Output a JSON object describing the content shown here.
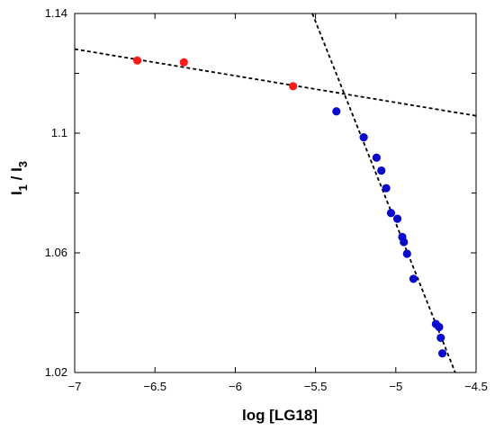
{
  "chart_data": {
    "type": "scatter",
    "xlabel": "log [LG18]",
    "ylabel": {
      "main": "I",
      "sub1": "1",
      "slash": " / I",
      "sub2": "3"
    },
    "xlim": [
      -7,
      -4.5
    ],
    "ylim": [
      1.02,
      1.14
    ],
    "x_ticks": [
      -7,
      -6.5,
      -6,
      -5.5,
      -5,
      -4.5
    ],
    "x_tick_labels": [
      "−7",
      "−6.5",
      "−6",
      "−5.5",
      "−5",
      "−4.5"
    ],
    "y_ticks": [
      1.02,
      1.06,
      1.1,
      1.14
    ],
    "y_tick_labels": [
      "1.02",
      "1.06",
      "1.1",
      "1.14"
    ],
    "y_minor_ticks": [
      1.04,
      1.08,
      1.12
    ],
    "grid": false,
    "series": [
      {
        "color": "#ff1a1a",
        "points": [
          {
            "x": -6.61,
            "y": 1.1243
          },
          {
            "x": -6.32,
            "y": 1.1237
          },
          {
            "x": -5.64,
            "y": 1.1157
          }
        ]
      },
      {
        "color": "#0a0acc",
        "points": [
          {
            "x": -5.37,
            "y": 1.1073
          },
          {
            "x": -5.2,
            "y": 1.0986
          },
          {
            "x": -5.12,
            "y": 1.0918
          },
          {
            "x": -5.09,
            "y": 1.0875
          },
          {
            "x": -5.06,
            "y": 1.0816
          },
          {
            "x": -5.03,
            "y": 1.0733
          },
          {
            "x": -4.99,
            "y": 1.0714
          },
          {
            "x": -4.96,
            "y": 1.0653
          },
          {
            "x": -4.95,
            "y": 1.0636
          },
          {
            "x": -4.93,
            "y": 1.0597
          },
          {
            "x": -4.89,
            "y": 1.0513
          },
          {
            "x": -4.75,
            "y": 1.0362
          },
          {
            "x": -4.73,
            "y": 1.0352
          },
          {
            "x": -4.72,
            "y": 1.0316
          },
          {
            "x": -4.71,
            "y": 1.0264
          }
        ]
      }
    ],
    "fit_lines": [
      {
        "from": {
          "x": -7.0,
          "y": 1.1281
        },
        "to": {
          "x": -4.5,
          "y": 1.1058
        }
      },
      {
        "from": {
          "x": -5.52,
          "y": 1.14
        },
        "to": {
          "x": -4.63,
          "y": 1.02
        }
      }
    ]
  }
}
